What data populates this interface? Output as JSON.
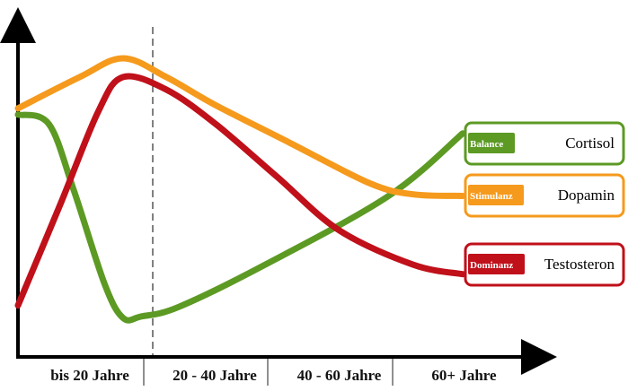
{
  "chart_data": {
    "type": "line",
    "categories": [
      "bis 20 Jahre",
      "20 - 40 Jahre",
      "40 - 60 Jahre",
      "60+ Jahre"
    ],
    "series": [
      {
        "name": "Cortisol",
        "tag": "Balance",
        "color": "#5c9a24",
        "points": [
          [
            0.0,
            6.6
          ],
          [
            0.25,
            6.3
          ],
          [
            0.45,
            4.2
          ],
          [
            0.7,
            1.2
          ],
          [
            0.85,
            0.1
          ],
          [
            1.0,
            0.15
          ],
          [
            1.3,
            0.45
          ],
          [
            2.0,
            1.8
          ],
          [
            3.0,
            4.0
          ],
          [
            3.6,
            6.0
          ]
        ]
      },
      {
        "name": "Dopamin",
        "tag": "Stimulanz",
        "color": "#f59a1c",
        "points": [
          [
            0.0,
            6.8
          ],
          [
            0.5,
            7.8
          ],
          [
            0.85,
            8.4
          ],
          [
            1.2,
            7.8
          ],
          [
            1.6,
            6.9
          ],
          [
            2.2,
            5.7
          ],
          [
            2.85,
            4.4
          ],
          [
            3.2,
            4.05
          ],
          [
            3.6,
            4.0
          ]
        ]
      },
      {
        "name": "Testosteron",
        "tag": "Dominanz",
        "color": "#c0101a",
        "points": [
          [
            0.0,
            0.5
          ],
          [
            0.35,
            3.8
          ],
          [
            0.65,
            6.7
          ],
          [
            0.85,
            7.8
          ],
          [
            1.2,
            7.4
          ],
          [
            1.6,
            6.3
          ],
          [
            2.1,
            4.6
          ],
          [
            2.6,
            2.9
          ],
          [
            3.2,
            1.8
          ],
          [
            3.6,
            1.5
          ]
        ]
      }
    ]
  }
}
